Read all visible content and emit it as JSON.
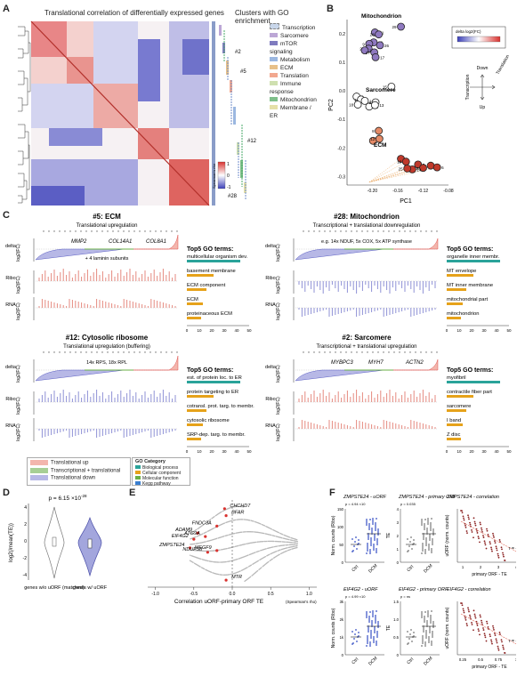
{
  "panel_labels": [
    "A",
    "B",
    "C",
    "D",
    "E",
    "F"
  ],
  "colors": {
    "red": "#d9322f",
    "blue": "#3b3fb8",
    "purple": "#8a6fb3",
    "green": "#6aaf45",
    "orange": "#e6a21a",
    "teal": "#2aa39a",
    "grey": "#9a9a9a",
    "light_red": "#f3b6ad",
    "light_blue": "#b7b8e6"
  },
  "panelA": {
    "title": "Translational correlation of differentially expressed genes",
    "clusters_title": "Clusters with GO enrichment",
    "legend": [
      "Transcription",
      "Sarcomere",
      "mTOR signaling",
      "Metabolism",
      "ECM",
      "Translation",
      "Immune response",
      "Mitochondrion",
      "Membrane / ER"
    ],
    "legend_colors": [
      "#c8d6ea",
      "#bca7d6",
      "#7f7bbf",
      "#9bb7e0",
      "#e7c089",
      "#f2a88f",
      "#cfe0b0",
      "#7fbf8a",
      "#e5e0a8"
    ],
    "cluster_tags": [
      "#2",
      "#5",
      "#12",
      "#28"
    ],
    "scale_title": "Spearman's rho",
    "scale_ticks": [
      "1",
      "0",
      "-1"
    ]
  },
  "panelB": {
    "groups": [
      "Mitochondrion",
      "Sarcomere",
      "ECM"
    ],
    "legend_title": "delta log2(FC)",
    "arrows": {
      "down": "Down",
      "up": "Up",
      "transcription": "Transcription",
      "translation": "Translation"
    },
    "xlabel": "PC1",
    "ylabel": "PC2",
    "xticks": [
      "-0.20",
      "-0.16",
      "-0.12",
      "-0.08"
    ],
    "yticks": [
      "0.2",
      "0.1",
      "0.0",
      "-0.1",
      "-0.2",
      "-0.3"
    ]
  },
  "panelC": {
    "row_labels": {
      "delta": "delta\nlog2(FC)",
      "ribo": "Ribo\nlog2(FC)",
      "rna": "RNA\nlog2(FC)"
    },
    "go_header": "Top5 GO terms:",
    "xlabel": "-log10(p",
    "xlabel_sub": "adj",
    "xticks": [
      "0",
      "10",
      "20",
      "30",
      "40",
      "50"
    ],
    "subpanels": [
      {
        "title": "#5: ECM",
        "subtitle": "Translational upregulation",
        "genes": [
          "MMP2",
          "COL14A1",
          "COL8A1"
        ],
        "note": "+ 4 laminin subunits",
        "go": [
          "multicellular organism dev.",
          "basement membrane",
          "ECM component",
          "ECM",
          "proteinaceous ECM"
        ]
      },
      {
        "title": "#28: Mitochondrion",
        "subtitle": "Transcriptional + translational downregulation",
        "genes": [],
        "note": "e.g. 14x NDUF, 5x COX, 5x ATP synthase",
        "go": [
          "organelle inner membr.",
          "MT envelope",
          "MT inner membrane",
          "mitochondrial part",
          "mitochondrion"
        ]
      },
      {
        "title": "#12: Cytosolic ribosome",
        "subtitle": "Translational upregulation (buffering)",
        "genes": [],
        "note": "14x RPS, 18x RPL",
        "go": [
          "est. of protein loc. to ER",
          "protein targeting to ER",
          "cotransl. prot. targ. to membr.",
          "cytosolic ribosome",
          "SRP-dep. targ. to membr."
        ]
      },
      {
        "title": "#2: Sarcomere",
        "subtitle": "Transcriptional + translational upregulation",
        "genes": [
          "MYBPC3",
          "MYH7",
          "ACTN2"
        ],
        "note": "",
        "go": [
          "myofibril",
          "contractile fiber part",
          "sarcomere",
          "I band",
          "Z disc"
        ]
      }
    ],
    "legend": [
      "Translational up",
      "Transcriptional + translational",
      "Translational down"
    ],
    "go_category_title": "GO Category",
    "go_categories": [
      "Biological process",
      "Cellular component",
      "Molecular function",
      "Kegg pathway"
    ]
  },
  "panelD": {
    "pvalue": "p = 6.15 ×10",
    "pvalue_exp": "-28",
    "ylabel": "log2(/mean(TE))",
    "yticks": [
      "4",
      "2",
      "0",
      "-2",
      "-4"
    ],
    "groups": [
      "genes\nw/o uORF\n(matched)",
      "genes\nw/ uORF"
    ]
  },
  "panelE": {
    "genes": [
      "CHCHD7",
      "BFAR",
      "FNDC3A",
      "ADAM9",
      "ATG9A",
      "EIF4G2",
      "ZMPSTE24",
      "NDUFS8",
      "MEGF9",
      "MTR"
    ],
    "xlabel": "Correlation uORF-primary ORF TE",
    "xlabel_note": "(Spearman's rho)",
    "xticks": [
      "-1.0",
      "-0.5",
      "0.0",
      "0.5",
      "1.0"
    ]
  },
  "panelF": {
    "titles": [
      "ZMPSTE24 - uORF",
      "ZMPSTE24 - primary ORF",
      "ZMPSTE24 - correlation",
      "EIF4G2 - uORF",
      "EIF4G2 - primary ORF",
      "EIF4G2 - correlation"
    ],
    "padj": [
      "p  = 4.94 ×10",
      "p  = 0.035",
      "",
      "p  = 4.99 ×10",
      "p  = ns",
      ""
    ],
    "y_ribo": "Norm. counts (Ribo)",
    "y_te": "TE",
    "y_uorf": "uORF (norm. counts)",
    "x_te": "primary ORF - TE",
    "groups": [
      "Ctrl",
      "DCM"
    ],
    "r_values": [
      "r = -0.56",
      "r = -0.54"
    ],
    "ticks_ribo1": [
      "150",
      "100",
      "50",
      "0"
    ],
    "ticks_te1": [
      "4",
      "3",
      "2",
      "1",
      "0"
    ],
    "ticks_corr1_x": [
      "1",
      "2",
      "3",
      "4"
    ],
    "ticks_ribo2": [
      "3k",
      "2k",
      "1k",
      "0"
    ],
    "ticks_te2": [
      "1.5",
      "1.0",
      "0.5",
      "0"
    ],
    "ticks_corr2_x": [
      "0.25",
      "0.5",
      "0.75",
      "1"
    ]
  },
  "chart_data": [
    {
      "type": "scatter",
      "title": "",
      "xlabel": "PC1",
      "ylabel": "PC2",
      "xlim": [
        -0.24,
        -0.08
      ],
      "ylim": [
        -0.33,
        0.25
      ],
      "series": [
        {
          "labels": [
            "29",
            "21",
            "28",
            "23",
            "9",
            "26",
            "22",
            "10",
            "27",
            "17",
            "15",
            "3",
            "1",
            "14",
            "18",
            "20",
            "2",
            "13",
            "8",
            "11",
            "12",
            "4",
            "19",
            "7",
            "5",
            "6",
            "16",
            "24",
            "25"
          ],
          "x": [
            -0.155,
            -0.196,
            -0.19,
            -0.198,
            -0.205,
            -0.188,
            -0.206,
            -0.212,
            -0.197,
            -0.195,
            -0.17,
            -0.225,
            -0.218,
            -0.212,
            -0.223,
            -0.205,
            -0.195,
            -0.196,
            -0.19,
            -0.199,
            -0.189,
            -0.155,
            -0.147,
            -0.128,
            -0.108,
            -0.098,
            -0.12,
            -0.137,
            -0.145
          ],
          "y": [
            0.225,
            0.205,
            0.198,
            0.17,
            0.165,
            0.16,
            0.148,
            0.142,
            0.135,
            0.118,
            0.015,
            -0.02,
            -0.03,
            -0.035,
            -0.048,
            -0.055,
            -0.04,
            -0.05,
            -0.14,
            -0.175,
            -0.168,
            -0.238,
            -0.248,
            -0.258,
            -0.262,
            -0.268,
            -0.27,
            -0.275,
            -0.272
          ]
        }
      ]
    },
    {
      "type": "scatter",
      "title": "",
      "xlabel": "Correlation uORF-primary ORF TE",
      "ylabel": "",
      "xlim": [
        -1.1,
        1.1
      ],
      "ylim": [
        0,
        1
      ],
      "series": [
        {
          "name": "highlighted",
          "labels": [
            "CHCHD7",
            "BFAR",
            "FNDC3A",
            "ADAM9",
            "ATG9A",
            "EIF4G2",
            "ZMPSTE24",
            "NDUFS8",
            "MEGF9",
            "MTR"
          ],
          "x": [
            -0.1,
            -0.08,
            -0.2,
            -0.45,
            -0.35,
            -0.5,
            -0.55,
            -0.32,
            -0.2,
            -0.08
          ],
          "y": [
            0.9,
            0.82,
            0.7,
            0.62,
            0.58,
            0.55,
            0.45,
            0.4,
            0.42,
            0.08
          ]
        }
      ]
    }
  ]
}
